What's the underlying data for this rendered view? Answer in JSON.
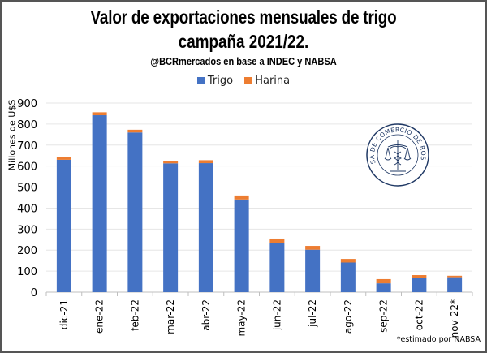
{
  "chart_data": {
    "type": "bar",
    "stacked": true,
    "title": "Valor de exportaciones mensuales de trigo",
    "title_line2": "campaña 2021/22.",
    "subtitle": "@BCRmercados en base a INDEC y NABSA",
    "xlabel": "",
    "ylabel": "Millones de U$S",
    "ylim": [
      0,
      900
    ],
    "yticks": [
      0,
      100,
      200,
      300,
      400,
      500,
      600,
      700,
      800,
      900
    ],
    "grid": true,
    "legend_position": "top",
    "categories": [
      "dic-21",
      "ene-22",
      "feb-22",
      "mar-22",
      "abr-22",
      "may-22",
      "jun-22",
      "jul-22",
      "ago-22",
      "sep-22",
      "oct-22",
      "nov-22*"
    ],
    "series": [
      {
        "name": "Trigo",
        "color": "#4472C4",
        "values": [
          630,
          842,
          760,
          613,
          614,
          441,
          232,
          202,
          141,
          42,
          68,
          71
        ]
      },
      {
        "name": "Harina",
        "color": "#ED7D31",
        "values": [
          13,
          14,
          13,
          10,
          14,
          19,
          23,
          18,
          17,
          20,
          13,
          7
        ]
      }
    ],
    "footnote": "*estimado por NABSA"
  },
  "logo": {
    "text": "BOLSA DE COMERCIO DE ROSARIO",
    "color": "#1F3864"
  }
}
